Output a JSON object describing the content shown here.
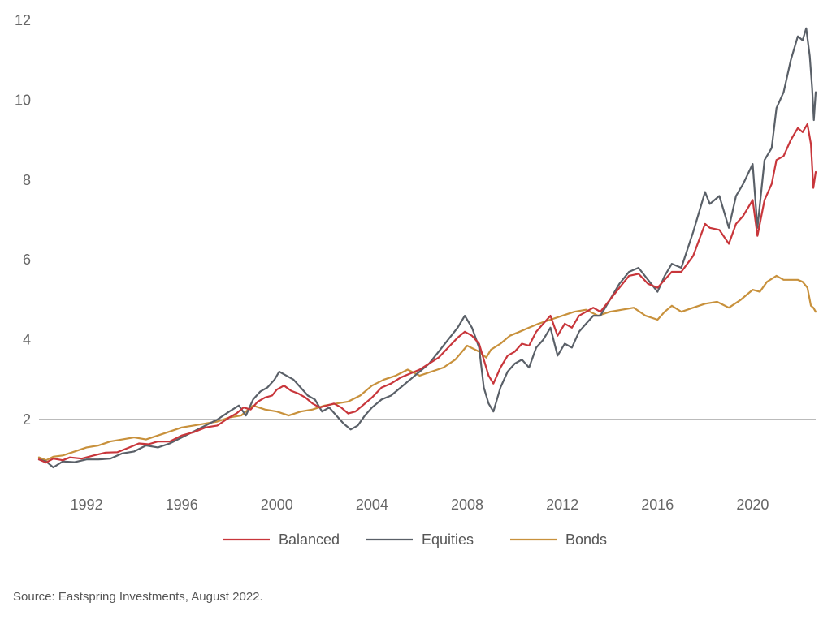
{
  "chart_data": {
    "type": "line",
    "title": "",
    "xlabel": "",
    "ylabel": "",
    "xlim": [
      1990.0,
      2022.65
    ],
    "ylim": [
      0,
      12
    ],
    "x_ticks": [
      1992,
      1996,
      2000,
      2004,
      2008,
      2012,
      2016,
      2020
    ],
    "y_ticks": [
      2,
      4,
      6,
      8,
      10,
      12
    ],
    "reference_line_y": 2,
    "legend_position": "bottom-center",
    "series": [
      {
        "name": "Balanced",
        "color": "#c8363b",
        "points": [
          [
            1990.0,
            1.0
          ],
          [
            1990.3,
            0.92
          ],
          [
            1990.6,
            1.02
          ],
          [
            1991.0,
            0.98
          ],
          [
            1991.3,
            1.05
          ],
          [
            1991.8,
            1.02
          ],
          [
            1992.3,
            1.1
          ],
          [
            1992.8,
            1.17
          ],
          [
            1993.3,
            1.18
          ],
          [
            1993.8,
            1.3
          ],
          [
            1994.2,
            1.4
          ],
          [
            1994.6,
            1.38
          ],
          [
            1995.0,
            1.45
          ],
          [
            1995.5,
            1.45
          ],
          [
            1996.0,
            1.6
          ],
          [
            1996.5,
            1.68
          ],
          [
            1997.0,
            1.8
          ],
          [
            1997.5,
            1.85
          ],
          [
            1998.0,
            2.05
          ],
          [
            1998.3,
            2.15
          ],
          [
            1998.6,
            2.3
          ],
          [
            1998.9,
            2.25
          ],
          [
            1999.2,
            2.45
          ],
          [
            1999.5,
            2.55
          ],
          [
            1999.8,
            2.6
          ],
          [
            2000.0,
            2.75
          ],
          [
            2000.3,
            2.85
          ],
          [
            2000.6,
            2.72
          ],
          [
            2000.9,
            2.65
          ],
          [
            2001.2,
            2.55
          ],
          [
            2001.5,
            2.4
          ],
          [
            2001.8,
            2.3
          ],
          [
            2002.1,
            2.35
          ],
          [
            2002.4,
            2.4
          ],
          [
            2002.7,
            2.3
          ],
          [
            2003.0,
            2.15
          ],
          [
            2003.3,
            2.2
          ],
          [
            2003.6,
            2.35
          ],
          [
            2004.0,
            2.55
          ],
          [
            2004.4,
            2.8
          ],
          [
            2004.8,
            2.9
          ],
          [
            2005.2,
            3.05
          ],
          [
            2005.6,
            3.15
          ],
          [
            2006.0,
            3.25
          ],
          [
            2006.4,
            3.4
          ],
          [
            2006.8,
            3.55
          ],
          [
            2007.2,
            3.8
          ],
          [
            2007.6,
            4.05
          ],
          [
            2007.9,
            4.2
          ],
          [
            2008.2,
            4.1
          ],
          [
            2008.5,
            3.9
          ],
          [
            2008.7,
            3.5
          ],
          [
            2008.9,
            3.1
          ],
          [
            2009.1,
            2.9
          ],
          [
            2009.4,
            3.3
          ],
          [
            2009.7,
            3.6
          ],
          [
            2010.0,
            3.7
          ],
          [
            2010.3,
            3.9
          ],
          [
            2010.6,
            3.85
          ],
          [
            2010.9,
            4.2
          ],
          [
            2011.2,
            4.4
          ],
          [
            2011.5,
            4.6
          ],
          [
            2011.8,
            4.1
          ],
          [
            2012.1,
            4.4
          ],
          [
            2012.4,
            4.3
          ],
          [
            2012.7,
            4.6
          ],
          [
            2013.0,
            4.7
          ],
          [
            2013.3,
            4.8
          ],
          [
            2013.6,
            4.7
          ],
          [
            2014.0,
            5.0
          ],
          [
            2014.4,
            5.3
          ],
          [
            2014.8,
            5.6
          ],
          [
            2015.2,
            5.65
          ],
          [
            2015.6,
            5.4
          ],
          [
            2016.0,
            5.3
          ],
          [
            2016.3,
            5.5
          ],
          [
            2016.6,
            5.7
          ],
          [
            2017.0,
            5.7
          ],
          [
            2017.5,
            6.1
          ],
          [
            2018.0,
            6.9
          ],
          [
            2018.2,
            6.8
          ],
          [
            2018.6,
            6.75
          ],
          [
            2019.0,
            6.4
          ],
          [
            2019.3,
            6.9
          ],
          [
            2019.6,
            7.1
          ],
          [
            2020.0,
            7.5
          ],
          [
            2020.2,
            6.6
          ],
          [
            2020.5,
            7.5
          ],
          [
            2020.8,
            7.9
          ],
          [
            2021.0,
            8.5
          ],
          [
            2021.3,
            8.6
          ],
          [
            2021.6,
            9.0
          ],
          [
            2021.9,
            9.3
          ],
          [
            2022.1,
            9.2
          ],
          [
            2022.3,
            9.4
          ],
          [
            2022.45,
            8.9
          ],
          [
            2022.55,
            7.8
          ],
          [
            2022.65,
            8.2
          ]
        ]
      },
      {
        "name": "Equities",
        "color": "#5a6068",
        "points": [
          [
            1990.0,
            1.0
          ],
          [
            1990.3,
            0.95
          ],
          [
            1990.6,
            0.8
          ],
          [
            1991.0,
            0.95
          ],
          [
            1991.5,
            0.93
          ],
          [
            1992.0,
            1.0
          ],
          [
            1992.5,
            1.0
          ],
          [
            1993.0,
            1.02
          ],
          [
            1993.5,
            1.15
          ],
          [
            1994.0,
            1.2
          ],
          [
            1994.5,
            1.35
          ],
          [
            1995.0,
            1.3
          ],
          [
            1995.5,
            1.4
          ],
          [
            1996.0,
            1.55
          ],
          [
            1996.5,
            1.7
          ],
          [
            1997.0,
            1.85
          ],
          [
            1997.5,
            2.0
          ],
          [
            1998.0,
            2.2
          ],
          [
            1998.4,
            2.35
          ],
          [
            1998.7,
            2.1
          ],
          [
            1999.0,
            2.5
          ],
          [
            1999.3,
            2.7
          ],
          [
            1999.6,
            2.8
          ],
          [
            1999.9,
            3.0
          ],
          [
            2000.1,
            3.2
          ],
          [
            2000.4,
            3.1
          ],
          [
            2000.7,
            3.0
          ],
          [
            2001.0,
            2.8
          ],
          [
            2001.3,
            2.6
          ],
          [
            2001.6,
            2.5
          ],
          [
            2001.9,
            2.2
          ],
          [
            2002.2,
            2.3
          ],
          [
            2002.5,
            2.1
          ],
          [
            2002.8,
            1.9
          ],
          [
            2003.1,
            1.75
          ],
          [
            2003.4,
            1.85
          ],
          [
            2003.7,
            2.1
          ],
          [
            2004.0,
            2.3
          ],
          [
            2004.4,
            2.5
          ],
          [
            2004.8,
            2.6
          ],
          [
            2005.2,
            2.8
          ],
          [
            2005.6,
            3.0
          ],
          [
            2006.0,
            3.2
          ],
          [
            2006.4,
            3.4
          ],
          [
            2006.8,
            3.7
          ],
          [
            2007.2,
            4.0
          ],
          [
            2007.6,
            4.3
          ],
          [
            2007.9,
            4.6
          ],
          [
            2008.2,
            4.3
          ],
          [
            2008.5,
            3.8
          ],
          [
            2008.7,
            2.8
          ],
          [
            2008.9,
            2.4
          ],
          [
            2009.1,
            2.2
          ],
          [
            2009.4,
            2.8
          ],
          [
            2009.7,
            3.2
          ],
          [
            2010.0,
            3.4
          ],
          [
            2010.3,
            3.5
          ],
          [
            2010.6,
            3.3
          ],
          [
            2010.9,
            3.8
          ],
          [
            2011.2,
            4.0
          ],
          [
            2011.5,
            4.3
          ],
          [
            2011.8,
            3.6
          ],
          [
            2012.1,
            3.9
          ],
          [
            2012.4,
            3.8
          ],
          [
            2012.7,
            4.2
          ],
          [
            2013.0,
            4.4
          ],
          [
            2013.3,
            4.6
          ],
          [
            2013.6,
            4.6
          ],
          [
            2014.0,
            5.0
          ],
          [
            2014.4,
            5.4
          ],
          [
            2014.8,
            5.7
          ],
          [
            2015.2,
            5.8
          ],
          [
            2015.6,
            5.5
          ],
          [
            2016.0,
            5.2
          ],
          [
            2016.3,
            5.6
          ],
          [
            2016.6,
            5.9
          ],
          [
            2017.0,
            5.8
          ],
          [
            2017.5,
            6.7
          ],
          [
            2018.0,
            7.7
          ],
          [
            2018.2,
            7.4
          ],
          [
            2018.6,
            7.6
          ],
          [
            2019.0,
            6.8
          ],
          [
            2019.3,
            7.6
          ],
          [
            2019.6,
            7.9
          ],
          [
            2020.0,
            8.4
          ],
          [
            2020.2,
            6.8
          ],
          [
            2020.5,
            8.5
          ],
          [
            2020.8,
            8.8
          ],
          [
            2021.0,
            9.8
          ],
          [
            2021.3,
            10.2
          ],
          [
            2021.6,
            11.0
          ],
          [
            2021.9,
            11.6
          ],
          [
            2022.1,
            11.5
          ],
          [
            2022.25,
            11.8
          ],
          [
            2022.4,
            11.1
          ],
          [
            2022.5,
            10.3
          ],
          [
            2022.57,
            9.5
          ],
          [
            2022.65,
            10.2
          ]
        ]
      },
      {
        "name": "Bonds",
        "color": "#c8913c",
        "points": [
          [
            1990.0,
            1.05
          ],
          [
            1990.3,
            0.98
          ],
          [
            1990.6,
            1.07
          ],
          [
            1991.0,
            1.1
          ],
          [
            1991.5,
            1.2
          ],
          [
            1992.0,
            1.3
          ],
          [
            1992.5,
            1.35
          ],
          [
            1993.0,
            1.45
          ],
          [
            1993.5,
            1.5
          ],
          [
            1994.0,
            1.55
          ],
          [
            1994.5,
            1.5
          ],
          [
            1995.0,
            1.6
          ],
          [
            1995.5,
            1.7
          ],
          [
            1996.0,
            1.8
          ],
          [
            1996.5,
            1.85
          ],
          [
            1997.0,
            1.9
          ],
          [
            1997.5,
            1.95
          ],
          [
            1998.0,
            2.05
          ],
          [
            1998.5,
            2.1
          ],
          [
            1999.0,
            2.35
          ],
          [
            1999.5,
            2.25
          ],
          [
            2000.0,
            2.2
          ],
          [
            2000.5,
            2.1
          ],
          [
            2001.0,
            2.2
          ],
          [
            2001.5,
            2.25
          ],
          [
            2002.0,
            2.35
          ],
          [
            2002.5,
            2.4
          ],
          [
            2003.0,
            2.45
          ],
          [
            2003.5,
            2.6
          ],
          [
            2004.0,
            2.85
          ],
          [
            2004.5,
            3.0
          ],
          [
            2005.0,
            3.1
          ],
          [
            2005.5,
            3.25
          ],
          [
            2006.0,
            3.1
          ],
          [
            2006.5,
            3.2
          ],
          [
            2007.0,
            3.3
          ],
          [
            2007.5,
            3.5
          ],
          [
            2008.0,
            3.85
          ],
          [
            2008.5,
            3.7
          ],
          [
            2008.8,
            3.55
          ],
          [
            2009.0,
            3.75
          ],
          [
            2009.4,
            3.9
          ],
          [
            2009.8,
            4.1
          ],
          [
            2010.2,
            4.2
          ],
          [
            2010.6,
            4.3
          ],
          [
            2011.0,
            4.4
          ],
          [
            2011.5,
            4.5
          ],
          [
            2012.0,
            4.6
          ],
          [
            2012.5,
            4.7
          ],
          [
            2013.0,
            4.75
          ],
          [
            2013.5,
            4.6
          ],
          [
            2014.0,
            4.7
          ],
          [
            2014.5,
            4.75
          ],
          [
            2015.0,
            4.8
          ],
          [
            2015.5,
            4.6
          ],
          [
            2016.0,
            4.5
          ],
          [
            2016.3,
            4.7
          ],
          [
            2016.6,
            4.85
          ],
          [
            2017.0,
            4.7
          ],
          [
            2017.5,
            4.8
          ],
          [
            2018.0,
            4.9
          ],
          [
            2018.5,
            4.95
          ],
          [
            2019.0,
            4.8
          ],
          [
            2019.5,
            5.0
          ],
          [
            2020.0,
            5.25
          ],
          [
            2020.3,
            5.2
          ],
          [
            2020.6,
            5.45
          ],
          [
            2021.0,
            5.6
          ],
          [
            2021.3,
            5.5
          ],
          [
            2021.6,
            5.5
          ],
          [
            2021.9,
            5.5
          ],
          [
            2022.1,
            5.45
          ],
          [
            2022.3,
            5.3
          ],
          [
            2022.45,
            4.85
          ],
          [
            2022.55,
            4.8
          ],
          [
            2022.65,
            4.7
          ]
        ]
      }
    ]
  },
  "source_text": "Source: Eastspring Investments, August 2022."
}
